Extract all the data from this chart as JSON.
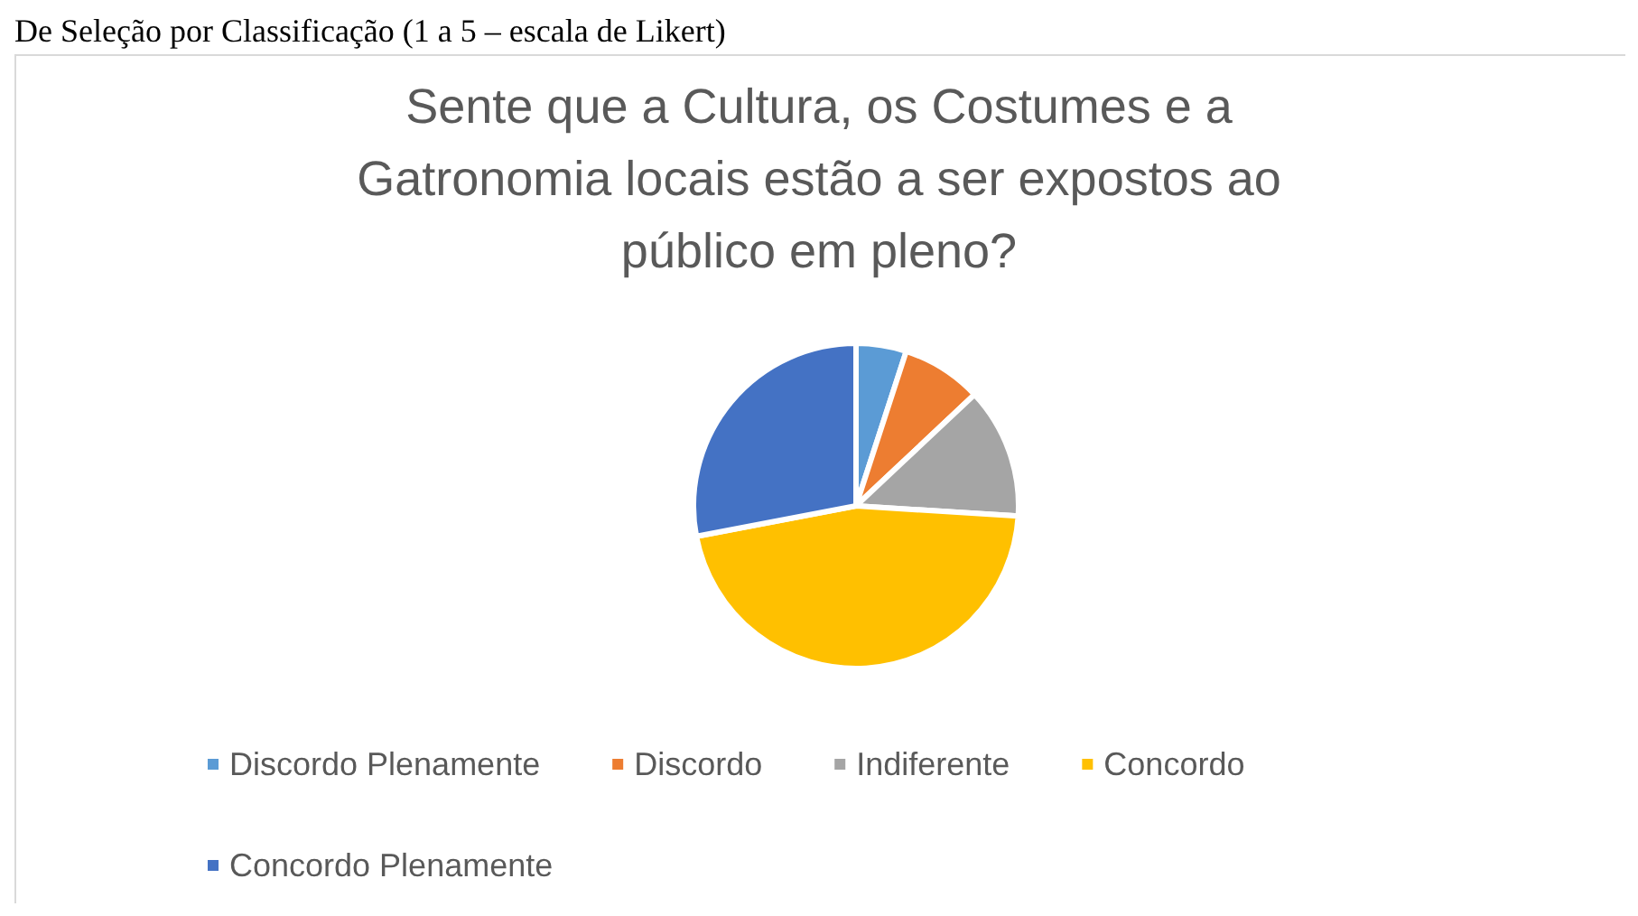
{
  "chart_data": {
    "type": "pie",
    "title": "Sente que a Cultura, os Costumes e a\nGatronomia locais estão a ser expostos ao\npúblico em pleno?",
    "annotations": [
      "De Seleção por Classificação (1 a 5 – escala de Likert)"
    ],
    "categories": [
      "Discordo Plenamente",
      "Discordo",
      "Indiferente",
      "Concordo",
      "Concordo Plenamente"
    ],
    "values": [
      5,
      8,
      13,
      46,
      28
    ],
    "colors": [
      "#5b9bd5",
      "#ed7d31",
      "#a5a5a5",
      "#ffc000",
      "#4472c4"
    ],
    "legend": "bottom"
  }
}
